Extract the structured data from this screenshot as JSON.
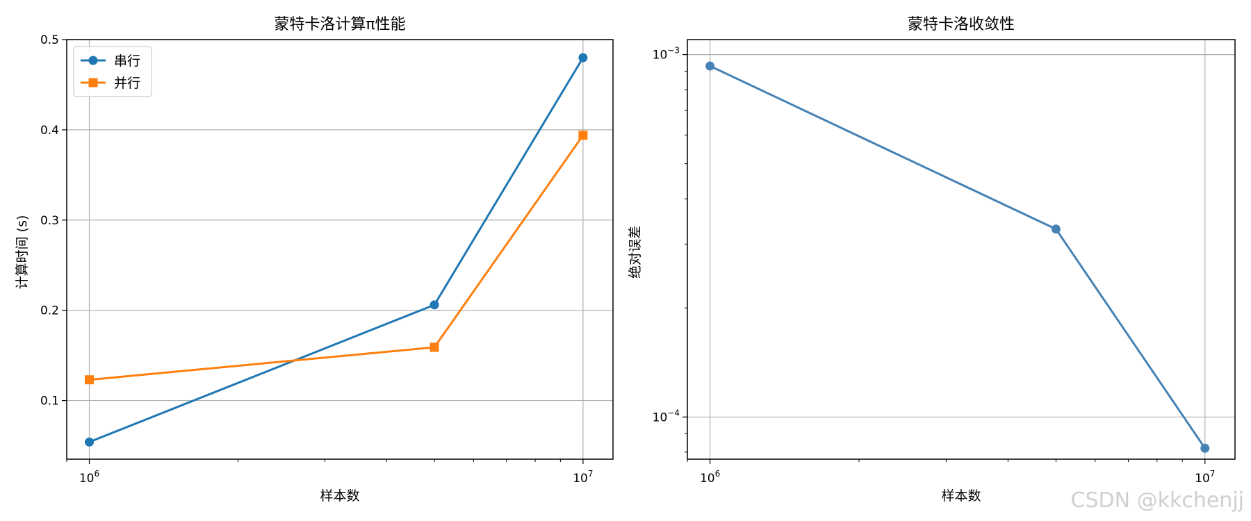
{
  "watermark": "CSDN @kkchenjj",
  "chart_data": [
    {
      "type": "line",
      "title": "蒙特卡洛计算π性能",
      "xlabel": "样本数",
      "ylabel": "计算时间 (s)",
      "x_scale": "log",
      "y_scale": "linear",
      "xlim": [
        900000,
        11500000
      ],
      "ylim": [
        0.035,
        0.5
      ],
      "x_ticks": [
        {
          "value": 1000000,
          "label": "10",
          "exp": "6"
        },
        {
          "value": 10000000,
          "label": "10",
          "exp": "7"
        }
      ],
      "y_ticks": [
        {
          "value": 0.1,
          "label": "0.1"
        },
        {
          "value": 0.2,
          "label": "0.2"
        },
        {
          "value": 0.3,
          "label": "0.3"
        },
        {
          "value": 0.4,
          "label": "0.4"
        },
        {
          "value": 0.5,
          "label": "0.5"
        }
      ],
      "grid": true,
      "legend_position": "top-left",
      "series": [
        {
          "name": "串行",
          "color": "#1f77b4",
          "marker": "circle",
          "x": [
            1000000,
            5000000,
            10000000
          ],
          "y": [
            0.054,
            0.206,
            0.48
          ]
        },
        {
          "name": "并行",
          "color": "#ff7f0e",
          "marker": "square",
          "x": [
            1000000,
            5000000,
            10000000
          ],
          "y": [
            0.123,
            0.159,
            0.394
          ]
        }
      ]
    },
    {
      "type": "line",
      "title": "蒙特卡洛收敛性",
      "xlabel": "样本数",
      "ylabel": "绝对误差",
      "x_scale": "log",
      "y_scale": "log",
      "xlim": [
        900000,
        11500000
      ],
      "ylim": [
        7.65e-05,
        0.0011
      ],
      "x_ticks": [
        {
          "value": 1000000,
          "label": "10",
          "exp": "6"
        },
        {
          "value": 10000000,
          "label": "10",
          "exp": "7"
        }
      ],
      "y_ticks": [
        {
          "value": 0.0001,
          "label": "10",
          "exp": "−4"
        },
        {
          "value": 0.001,
          "label": "10",
          "exp": "−3"
        }
      ],
      "grid": true,
      "legend_position": "",
      "series": [
        {
          "color": "#4682b4",
          "marker": "circle",
          "x": [
            1000000,
            5000000,
            10000000
          ],
          "y": [
            0.00093,
            0.00033,
            8.2e-05
          ]
        }
      ]
    }
  ]
}
